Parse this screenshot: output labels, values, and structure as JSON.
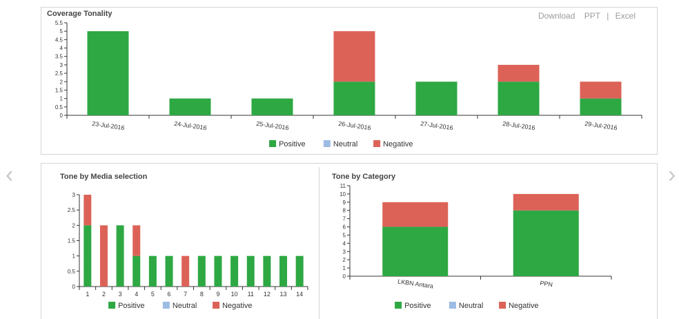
{
  "toolbar": {
    "download": "Download",
    "ppt": "PPT",
    "separator": "|",
    "excel": "Excel"
  },
  "nav": {
    "prev_icon": "chevron-left-icon",
    "next_icon": "chevron-right-icon"
  },
  "legend_labels": [
    "Positive",
    "Neutral",
    "Negative"
  ],
  "colors": {
    "positive": "#2ea843",
    "neutral": "#9cbce4",
    "negative": "#dc6258",
    "axis": "#333333"
  },
  "chart_data": [
    {
      "id": "coverage-tonality",
      "type": "bar",
      "stacked": true,
      "title": "Coverage Tonality",
      "xlabel": "",
      "ylabel": "",
      "categories": [
        "23-Jul-2016",
        "24-Jul-2016",
        "25-Jul-2016",
        "26-Jul-2016",
        "27-Jul-2016",
        "28-Jul-2016",
        "29-Jul-2016"
      ],
      "series": [
        {
          "name": "Positive",
          "values": [
            5,
            1,
            1,
            2,
            2,
            2,
            1
          ]
        },
        {
          "name": "Neutral",
          "values": [
            0,
            0,
            0,
            0,
            0,
            0,
            0
          ]
        },
        {
          "name": "Negative",
          "values": [
            0,
            0,
            0,
            3,
            0,
            1,
            1
          ]
        }
      ],
      "ylim": [
        0,
        5.5
      ],
      "yticks": [
        "0",
        "0.5",
        "1",
        "1.5",
        "2",
        "2.5",
        "3",
        "3.5",
        "4",
        "4.5",
        "5",
        "5.5"
      ],
      "legend": "bottom"
    },
    {
      "id": "tone-by-media",
      "type": "bar",
      "stacked": true,
      "title": "Tone by Media selection",
      "xlabel": "",
      "ylabel": "",
      "categories": [
        "1",
        "2",
        "3",
        "4",
        "5",
        "6",
        "7",
        "8",
        "9",
        "10",
        "11",
        "12",
        "13",
        "14"
      ],
      "series": [
        {
          "name": "Positive",
          "values": [
            2,
            0,
            2,
            1,
            1,
            1,
            0,
            1,
            1,
            1,
            1,
            1,
            1,
            1
          ]
        },
        {
          "name": "Neutral",
          "values": [
            0,
            0,
            0,
            0,
            0,
            0,
            0,
            0,
            0,
            0,
            0,
            0,
            0,
            0
          ]
        },
        {
          "name": "Negative",
          "values": [
            1,
            2,
            0,
            1,
            0,
            0,
            1,
            0,
            0,
            0,
            0,
            0,
            0,
            0
          ]
        }
      ],
      "ylim": [
        0,
        3
      ],
      "yticks": [
        "0",
        "0.5",
        "1",
        "1.5",
        "2",
        "2.5",
        "3"
      ],
      "legend": "bottom"
    },
    {
      "id": "tone-by-category",
      "type": "bar",
      "stacked": true,
      "title": "Tone by Category",
      "xlabel": "",
      "ylabel": "",
      "categories": [
        "LKBN Antara",
        "PPN"
      ],
      "series": [
        {
          "name": "Positive",
          "values": [
            6,
            8
          ]
        },
        {
          "name": "Neutral",
          "values": [
            0,
            0
          ]
        },
        {
          "name": "Negative",
          "values": [
            3,
            2
          ]
        }
      ],
      "ylim": [
        0,
        11
      ],
      "yticks": [
        "0",
        "1",
        "2",
        "3",
        "4",
        "5",
        "6",
        "7",
        "8",
        "9",
        "10",
        "11"
      ],
      "legend": "bottom"
    }
  ]
}
